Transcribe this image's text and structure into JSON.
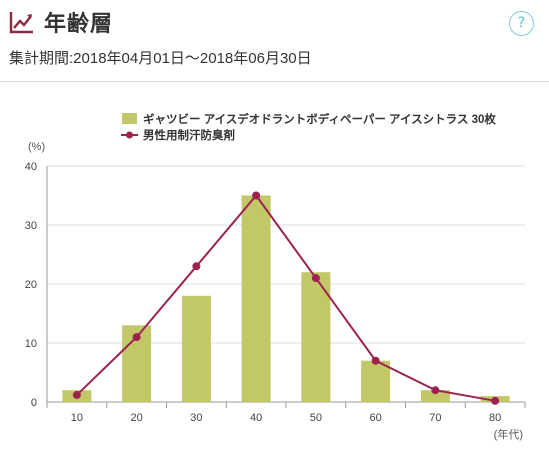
{
  "header": {
    "title": "年齢層",
    "title_icon": "trend-line-icon",
    "help_label": "?",
    "period": "集計期間:2018年04月01日～2018年06月30日"
  },
  "colors": {
    "bar": "#c2c768",
    "line": "#9c2350",
    "icon": "#8b2a42",
    "help": "#5bbdc6",
    "grid": "#dcdcdc",
    "axis": "#555555"
  },
  "chart_data": {
    "type": "bar",
    "categories": [
      "10",
      "20",
      "30",
      "40",
      "50",
      "60",
      "70",
      "80"
    ],
    "series": [
      {
        "name": "ギャツビー アイスデオドラントボディペーパー アイスシトラス 30枚",
        "kind": "bar",
        "values": [
          2,
          13,
          18,
          35,
          22,
          7,
          2,
          1
        ]
      },
      {
        "name": "男性用制汗防臭剤",
        "kind": "line",
        "values": [
          1.2,
          11,
          23,
          35,
          21,
          7,
          2,
          0.2
        ]
      }
    ],
    "xlabel": "(年代)",
    "ylabel": "(%)",
    "ylim": [
      0,
      40
    ],
    "yticks": [
      0,
      10,
      20,
      30,
      40
    ],
    "grid": true,
    "legend": "top-right"
  }
}
